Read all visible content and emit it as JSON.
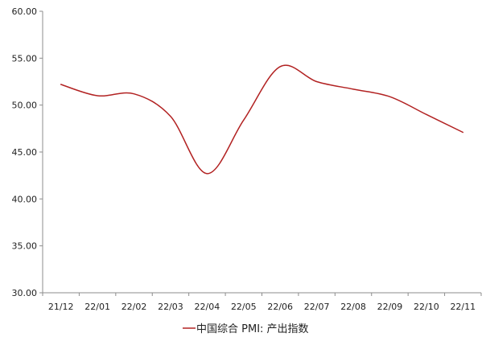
{
  "chart_data": {
    "type": "line",
    "title": "",
    "xlabel": "",
    "ylabel": "",
    "categories": [
      "21/12",
      "22/01",
      "22/02",
      "22/03",
      "22/04",
      "22/05",
      "22/06",
      "22/07",
      "22/08",
      "22/09",
      "22/10",
      "22/11"
    ],
    "series": [
      {
        "name": "中国综合 PMI: 产出指数",
        "values": [
          52.2,
          51.0,
          51.2,
          48.8,
          42.7,
          48.4,
          54.1,
          52.5,
          51.7,
          50.9,
          49.0,
          47.1
        ],
        "color": "#B22222"
      }
    ],
    "ylim": [
      30,
      60
    ],
    "yticks": [
      "30.00",
      "35.00",
      "40.00",
      "45.00",
      "50.00",
      "55.00",
      "60.00"
    ],
    "grid": false,
    "legend_position": "bottom",
    "smooth": true
  }
}
